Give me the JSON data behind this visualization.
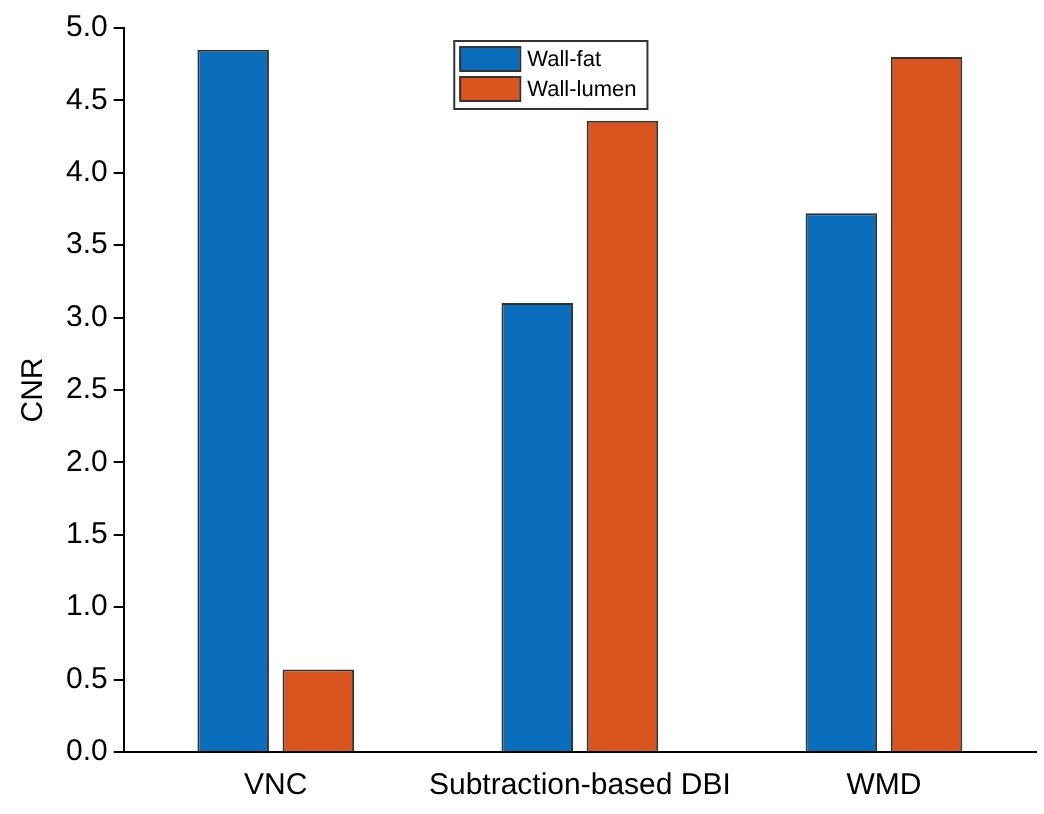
{
  "chart_data": {
    "type": "bar",
    "ylabel": "CNR",
    "categories": [
      "VNC",
      "Subtraction-based DBI",
      "WMD"
    ],
    "series": [
      {
        "name": "Wall-fat",
        "color": "#0a6ebd",
        "values": [
          4.85,
          3.1,
          3.72
        ]
      },
      {
        "name": "Wall-lumen",
        "color": "#d9541e",
        "values": [
          0.57,
          4.36,
          4.8
        ]
      }
    ],
    "ylim": [
      0,
      5
    ],
    "yticks": [
      {
        "value": 0,
        "label": "0.0"
      },
      {
        "value": 0.5,
        "label": "0.5"
      },
      {
        "value": 1,
        "label": "1.0"
      },
      {
        "value": 1.5,
        "label": "1.5"
      },
      {
        "value": 2,
        "label": "2.0"
      },
      {
        "value": 2.5,
        "label": "2.5"
      },
      {
        "value": 3,
        "label": "3.0"
      },
      {
        "value": 3.5,
        "label": "3.5"
      },
      {
        "value": 4,
        "label": "4.0"
      },
      {
        "value": 4.5,
        "label": "4.5"
      },
      {
        "value": 5,
        "label": "5.0"
      }
    ],
    "grid": false,
    "legend": "top"
  }
}
